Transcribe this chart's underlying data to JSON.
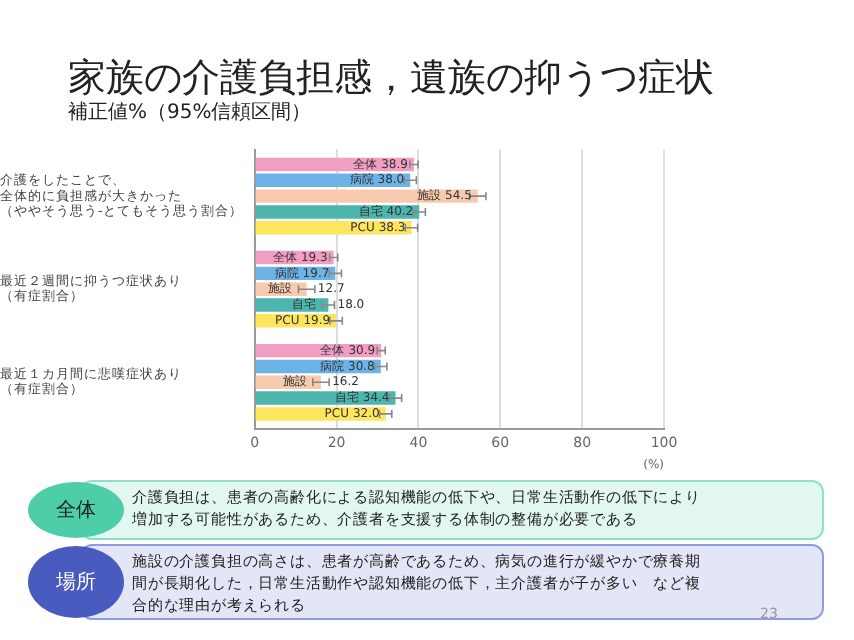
{
  "chart_data": {
    "type": "bar",
    "orientation": "horizontal",
    "title": "家族の介護負担感，遺族の抑うつ症状",
    "subtitle": "補正値%（95%信頼区間）",
    "xlabel": "(%)",
    "categories": [
      "介護をしたことで、全体的に負担感が大きかった（ややそう思う-とてもそう思う割合）",
      "最近２週間に抑うつ症状あり（有症割合）",
      "最近１カ月間に悲嘆症状あり（有症割合）"
    ],
    "series": [
      {
        "name": "全体",
        "color": "#f19ec2",
        "values": [
          38.9,
          19.3,
          30.9
        ],
        "errors": [
          1,
          1,
          1
        ],
        "value_labels": [
          "38.9",
          "19.3",
          "30.9"
        ]
      },
      {
        "name": "病院",
        "color": "#6cb4e8",
        "values": [
          38.0,
          19.7,
          30.8
        ],
        "errors": [
          1.5,
          1.5,
          1.5
        ],
        "value_labels": [
          "38.0",
          "19.7",
          "30.8"
        ]
      },
      {
        "name": "施設",
        "color": "#f9cbae",
        "values": [
          54.5,
          12.7,
          16.2
        ],
        "errors": [
          2,
          2,
          2
        ],
        "value_labels": [
          "54.5",
          "12.7",
          "16.2"
        ]
      },
      {
        "name": "自宅",
        "color": "#4db6ac",
        "values": [
          40.2,
          18.0,
          34.4
        ],
        "errors": [
          1.5,
          1.5,
          1.5
        ],
        "value_labels": [
          "40.2",
          "18.0",
          "34.4"
        ]
      },
      {
        "name": "PCU",
        "color": "#fde55c",
        "values": [
          38.3,
          19.9,
          32.0
        ],
        "errors": [
          1.5,
          1.5,
          1.5
        ],
        "value_labels": [
          "38.3",
          "19.9",
          "32.0"
        ]
      }
    ],
    "xlim": [
      0,
      100
    ],
    "xticks": [
      0,
      20,
      40,
      60,
      80,
      100
    ],
    "grid": "x",
    "legend": false,
    "annotations": [
      "全体",
      "介護負担は、患者の高齢化による認知機能の低下や、日常生活動作の低下により増加する可能性があるため、介護者を支援する体制の整備が必要である",
      "場所",
      "施設の介護負担の高さは、患者が高齢であるため、病気の進行が緩やかで療養期間が長期化した，日常生活動作や認知機能の低下，主介護者が子が多い　など複合的な理由が考えられる",
      "23"
    ]
  }
}
